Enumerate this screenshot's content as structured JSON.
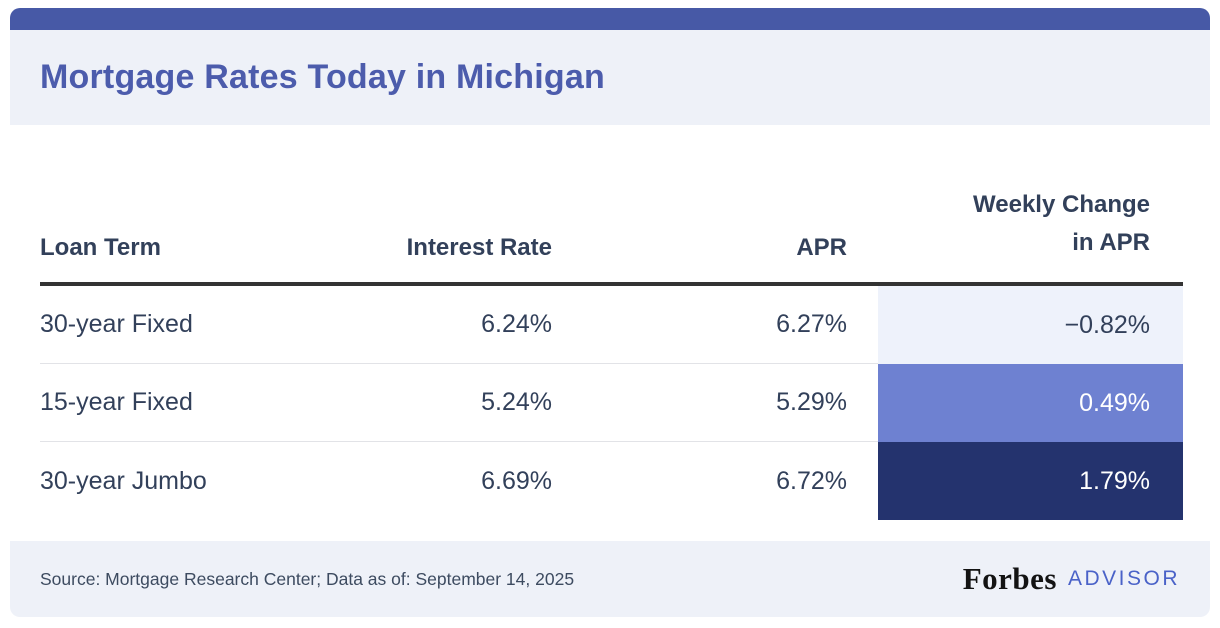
{
  "title": "Mortgage Rates Today in Michigan",
  "colors": {
    "top_bar": "#4759a6",
    "band_bg": "#eef1f8",
    "title_text": "#4c5cac",
    "header_text": "#32405a",
    "thick_rule": "#333333",
    "row_divider": "#e2e3e7",
    "advisor_blue": "#4a62c8"
  },
  "chart_data": {
    "type": "table",
    "title": "Mortgage Rates Today in Michigan",
    "columns": [
      "Loan Term",
      "Interest Rate",
      "APR",
      "Weekly Change in APR"
    ],
    "column4_lines": {
      "line1": "Weekly Change",
      "line2": "in APR"
    },
    "rows": [
      {
        "term": "30-year Fixed",
        "interest_rate": "6.24%",
        "apr": "6.27%",
        "weekly_change": "−0.82%",
        "change_bg": "#eef2fb",
        "change_fg": "#32405a"
      },
      {
        "term": "15-year Fixed",
        "interest_rate": "5.24%",
        "apr": "5.29%",
        "weekly_change": "0.49%",
        "change_bg": "#6e81d1",
        "change_fg": "#ffffff"
      },
      {
        "term": "30-year Jumbo",
        "interest_rate": "6.69%",
        "apr": "6.72%",
        "weekly_change": "1.79%",
        "change_bg": "#24336e",
        "change_fg": "#ffffff"
      }
    ]
  },
  "footer": {
    "source": "Source: Mortgage Research Center; Data as of: September 14, 2025",
    "brand": "Forbes",
    "brand_suffix": "ADVISOR"
  }
}
